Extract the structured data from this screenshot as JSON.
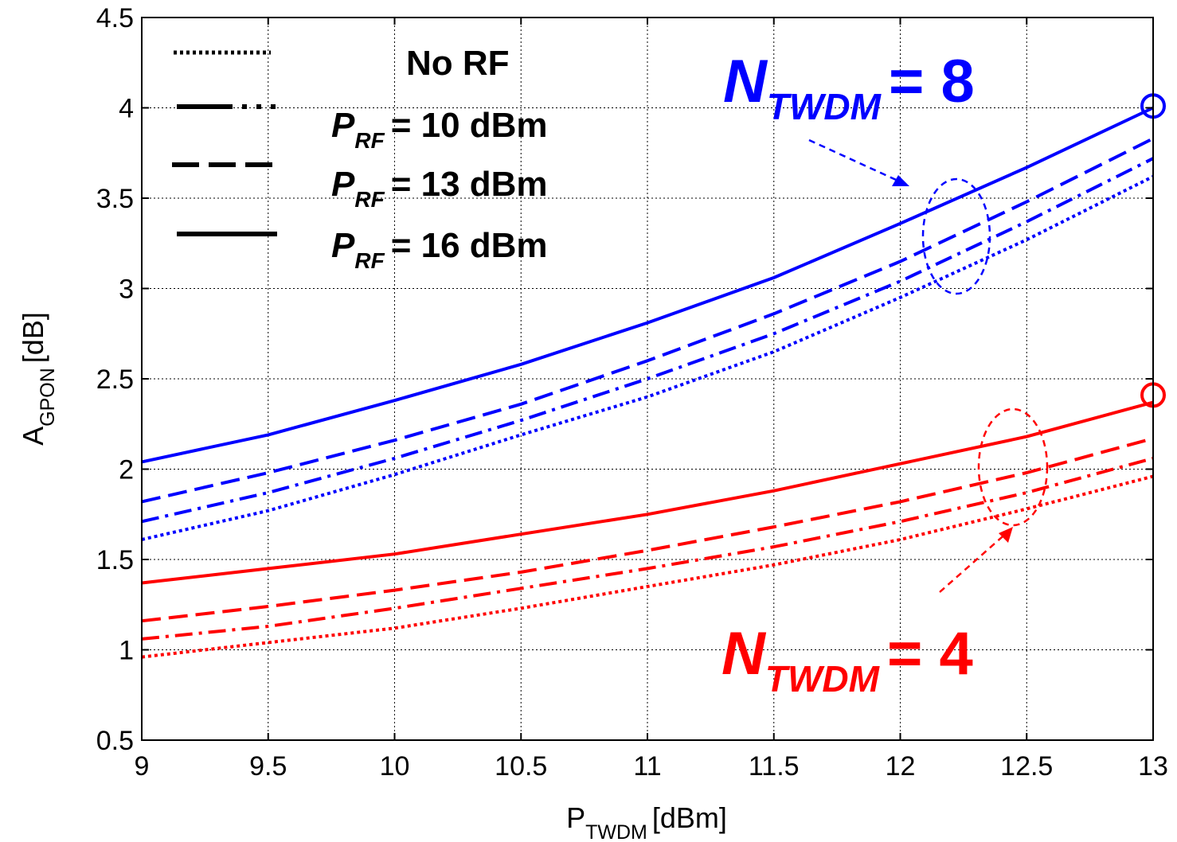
{
  "chart_data": {
    "type": "line",
    "xlabel": {
      "main": "P",
      "sub": "TWDM",
      "unit": "[dBm]"
    },
    "ylabel": {
      "main": "A",
      "sub": "GPON",
      "unit": "[dB]"
    },
    "xlim": [
      9,
      13
    ],
    "ylim": [
      0.5,
      4.5
    ],
    "xticks": [
      "9",
      "9.5",
      "10",
      "10.5",
      "11",
      "11.5",
      "12",
      "12.5",
      "13"
    ],
    "yticks": [
      "0.5",
      "1",
      "1.5",
      "2",
      "2.5",
      "3",
      "3.5",
      "4",
      "4.5"
    ],
    "grid": true,
    "legend": {
      "position": "top-left",
      "entries": [
        {
          "style": "dotted",
          "text": "No RF"
        },
        {
          "style": "dashdot",
          "prefix": "P",
          "sub": "RF",
          "text": "= 10 dBm"
        },
        {
          "style": "dashed",
          "prefix": "P",
          "sub": "RF",
          "text": "= 13 dBm"
        },
        {
          "style": "solid",
          "prefix": "P",
          "sub": "RF",
          "text": "= 16 dBm"
        }
      ]
    },
    "x": [
      9,
      9.5,
      10,
      10.5,
      11,
      11.5,
      12,
      12.5,
      13
    ],
    "groups": [
      {
        "color": "#0000ff",
        "label": {
          "main": "N",
          "sub": "TWDM",
          "suffix": "= 8"
        },
        "series": [
          {
            "style": "dotted",
            "values": [
              1.61,
              1.77,
              1.97,
              2.19,
              2.4,
              2.65,
              2.95,
              3.27,
              3.62
            ]
          },
          {
            "style": "dashdot",
            "values": [
              1.71,
              1.87,
              2.06,
              2.27,
              2.5,
              2.75,
              3.04,
              3.37,
              3.72
            ]
          },
          {
            "style": "dashed",
            "values": [
              1.82,
              1.98,
              2.16,
              2.36,
              2.6,
              2.86,
              3.15,
              3.48,
              3.83
            ]
          },
          {
            "style": "solid",
            "values": [
              2.04,
              2.19,
              2.38,
              2.58,
              2.81,
              3.06,
              3.36,
              3.67,
              4.0
            ]
          }
        ],
        "endpoint_marker": {
          "x": 13,
          "y": 4.01
        }
      },
      {
        "color": "#ff0000",
        "label": {
          "main": "N",
          "sub": "TWDM",
          "suffix": "= 4"
        },
        "series": [
          {
            "style": "dotted",
            "values": [
              0.96,
              1.04,
              1.12,
              1.23,
              1.35,
              1.47,
              1.61,
              1.78,
              1.96
            ]
          },
          {
            "style": "dashdot",
            "values": [
              1.06,
              1.13,
              1.23,
              1.34,
              1.45,
              1.57,
              1.71,
              1.87,
              2.06
            ]
          },
          {
            "style": "dashed",
            "values": [
              1.16,
              1.24,
              1.33,
              1.43,
              1.55,
              1.68,
              1.82,
              1.98,
              2.17
            ]
          },
          {
            "style": "solid",
            "values": [
              1.37,
              1.45,
              1.53,
              1.64,
              1.75,
              1.88,
              2.03,
              2.18,
              2.37
            ]
          }
        ],
        "endpoint_marker": {
          "x": 13,
          "y": 2.41
        }
      }
    ]
  }
}
